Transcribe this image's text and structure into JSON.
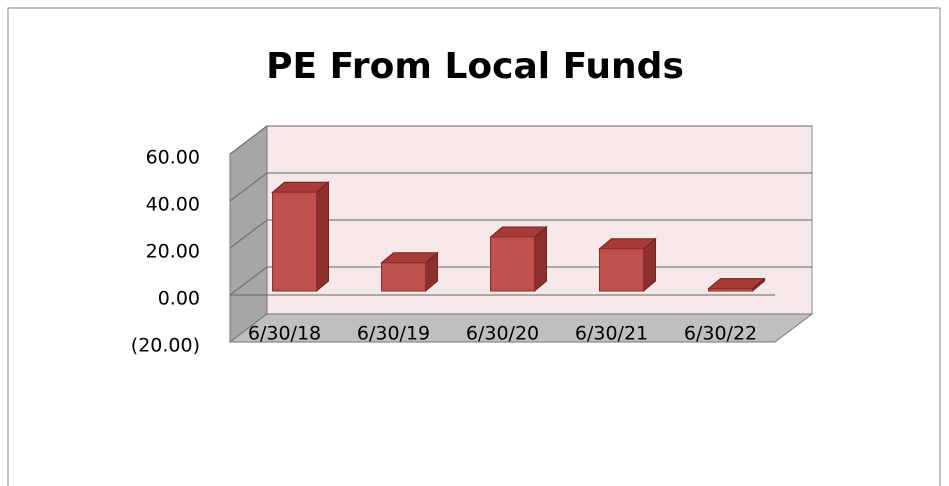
{
  "chart_data": {
    "type": "bar3d",
    "title": "PE From Local Funds",
    "categories": [
      "6/30/18",
      "6/30/19",
      "6/30/20",
      "6/30/21",
      "6/30/22"
    ],
    "values": [
      42,
      12,
      23,
      18,
      1
    ],
    "color": "#c0504d",
    "ylim": [
      -20,
      60
    ],
    "yticks": [
      {
        "value": -20,
        "label": "(20.00)"
      },
      {
        "value": 0,
        "label": "0.00"
      },
      {
        "value": 20,
        "label": "20.00"
      },
      {
        "value": 40,
        "label": "40.00"
      },
      {
        "value": 60,
        "label": "60.00"
      }
    ],
    "grid": true
  }
}
